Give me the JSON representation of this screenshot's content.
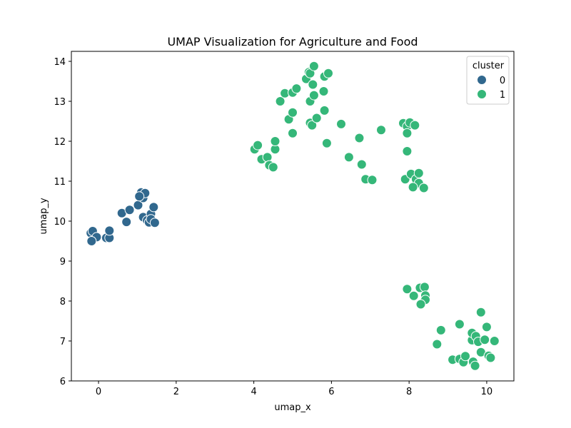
{
  "chart_data": {
    "type": "scatter",
    "title": "UMAP Visualization for Agriculture and Food",
    "xlabel": "umap_x",
    "ylabel": "umap_y",
    "xlim": [
      -0.7,
      10.7
    ],
    "ylim": [
      6.0,
      14.25
    ],
    "xticks": [
      0,
      2,
      4,
      6,
      8,
      10
    ],
    "yticks": [
      6,
      7,
      8,
      9,
      10,
      11,
      12,
      13,
      14
    ],
    "grid": false,
    "legend": {
      "title": "cluster",
      "position": "top-right"
    },
    "series": [
      {
        "name": "0",
        "color": "#31688e",
        "points": [
          [
            -0.2,
            9.7
          ],
          [
            -0.15,
            9.75
          ],
          [
            -0.05,
            9.6
          ],
          [
            -0.18,
            9.5
          ],
          [
            0.2,
            9.58
          ],
          [
            0.28,
            9.58
          ],
          [
            0.28,
            9.76
          ],
          [
            0.6,
            10.2
          ],
          [
            0.72,
            9.98
          ],
          [
            0.8,
            10.28
          ],
          [
            1.02,
            10.4
          ],
          [
            1.1,
            10.72
          ],
          [
            1.15,
            10.58
          ],
          [
            1.2,
            10.7
          ],
          [
            1.05,
            10.62
          ],
          [
            1.15,
            10.1
          ],
          [
            1.25,
            10.02
          ],
          [
            1.3,
            9.97
          ],
          [
            1.35,
            10.18
          ],
          [
            1.35,
            10.05
          ],
          [
            1.42,
            10.35
          ],
          [
            1.45,
            9.96
          ]
        ]
      },
      {
        "name": "1",
        "color": "#35b779",
        "points": [
          [
            4.02,
            11.8
          ],
          [
            4.1,
            11.9
          ],
          [
            4.2,
            11.55
          ],
          [
            4.35,
            11.6
          ],
          [
            4.4,
            11.4
          ],
          [
            4.5,
            11.35
          ],
          [
            4.55,
            11.8
          ],
          [
            4.55,
            12.0
          ],
          [
            4.68,
            13.0
          ],
          [
            4.8,
            13.2
          ],
          [
            4.9,
            12.55
          ],
          [
            5.0,
            12.2
          ],
          [
            5.0,
            12.72
          ],
          [
            5.0,
            13.22
          ],
          [
            5.1,
            13.32
          ],
          [
            5.35,
            13.56
          ],
          [
            5.42,
            13.73
          ],
          [
            5.45,
            13.7
          ],
          [
            5.45,
            13.0
          ],
          [
            5.45,
            12.46
          ],
          [
            5.5,
            12.4
          ],
          [
            5.52,
            13.42
          ],
          [
            5.55,
            13.15
          ],
          [
            5.55,
            13.88
          ],
          [
            5.62,
            12.58
          ],
          [
            5.8,
            13.25
          ],
          [
            5.82,
            12.77
          ],
          [
            5.82,
            13.62
          ],
          [
            5.88,
            11.95
          ],
          [
            5.92,
            13.7
          ],
          [
            6.25,
            12.43
          ],
          [
            6.45,
            11.6
          ],
          [
            6.72,
            12.08
          ],
          [
            6.78,
            11.42
          ],
          [
            6.88,
            11.05
          ],
          [
            7.05,
            11.03
          ],
          [
            7.28,
            12.28
          ],
          [
            7.85,
            12.45
          ],
          [
            7.95,
            12.37
          ],
          [
            7.95,
            12.2
          ],
          [
            8.02,
            12.47
          ],
          [
            8.15,
            12.4
          ],
          [
            7.95,
            11.75
          ],
          [
            7.9,
            11.05
          ],
          [
            8.05,
            11.18
          ],
          [
            8.18,
            11.05
          ],
          [
            8.25,
            11.2
          ],
          [
            8.25,
            10.95
          ],
          [
            8.1,
            10.85
          ],
          [
            8.38,
            10.83
          ],
          [
            7.95,
            8.3
          ],
          [
            8.12,
            8.13
          ],
          [
            8.28,
            8.33
          ],
          [
            8.4,
            8.35
          ],
          [
            8.42,
            8.14
          ],
          [
            8.42,
            8.03
          ],
          [
            8.3,
            7.92
          ],
          [
            8.72,
            6.92
          ],
          [
            8.82,
            7.27
          ],
          [
            9.12,
            6.53
          ],
          [
            9.3,
            7.42
          ],
          [
            9.3,
            6.55
          ],
          [
            9.4,
            6.47
          ],
          [
            9.45,
            6.62
          ],
          [
            9.62,
            7.02
          ],
          [
            9.62,
            7.2
          ],
          [
            9.65,
            6.48
          ],
          [
            9.7,
            6.38
          ],
          [
            9.72,
            7.12
          ],
          [
            9.78,
            6.98
          ],
          [
            9.85,
            7.72
          ],
          [
            9.85,
            6.72
          ],
          [
            9.95,
            7.03
          ],
          [
            10.0,
            7.35
          ],
          [
            10.05,
            6.63
          ],
          [
            10.1,
            6.58
          ],
          [
            10.2,
            7.0
          ]
        ]
      }
    ]
  }
}
